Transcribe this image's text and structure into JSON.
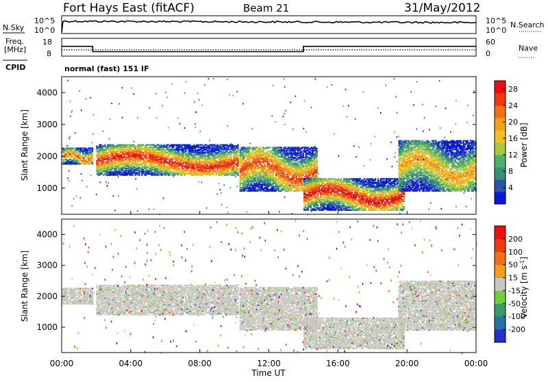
{
  "header": {
    "title": "Fort Hays East (fitACF)",
    "beam": "Beam 21",
    "date": "31/May/2012"
  },
  "noise_panel": {
    "left_label": "N.Sky",
    "right_label": "N.Search",
    "left_ticks": [
      "10^5",
      "10^0"
    ],
    "right_ticks": [
      "10^5",
      "10^0"
    ]
  },
  "freq_panel": {
    "left_label_1": "Freq.",
    "left_label_2": "[MHz]",
    "right_label": "Nave",
    "left_ticks": [
      "18",
      "8"
    ],
    "right_ticks": [
      "60",
      "0"
    ]
  },
  "cpid": {
    "label": "CPID",
    "value": "normal (fast) 151 IF"
  },
  "x_axis": {
    "label": "Time UT",
    "ticks": [
      "00:00",
      "04:00",
      "08:00",
      "12:00",
      "16:00",
      "20:00",
      "00:00"
    ]
  },
  "y_axis": {
    "label": "Slant Range [km]",
    "ticks": [
      "1000",
      "2000",
      "3000",
      "4000"
    ]
  },
  "power_colorbar": {
    "label": "Power [dB]",
    "ticks": [
      "4",
      "8",
      "12",
      "16",
      "20",
      "24",
      "28"
    ],
    "colors": [
      "#0a16d8",
      "#2a55a6",
      "#3a8e78",
      "#52b06a",
      "#a8c840",
      "#f0c020",
      "#f0a020",
      "#f07018",
      "#ee3a14",
      "#e81010"
    ]
  },
  "velocity_colorbar": {
    "label": "Velocity [m s",
    "label_sup": "-1",
    "label_end": "]",
    "ticks": [
      "200",
      "100",
      "50",
      "15",
      "-15",
      "-50",
      "-100",
      "-200"
    ],
    "colors": [
      "#2030c8",
      "#2a70a0",
      "#3a9a6a",
      "#70cc40",
      "#c8c8c0",
      "#f0a020",
      "#f07018",
      "#ee3a14",
      "#e81010"
    ]
  },
  "chart_data": [
    {
      "type": "heatmap",
      "name": "power",
      "xlabel": "Time UT",
      "ylabel": "Slant Range [km]",
      "xlim": [
        0,
        24
      ],
      "ylim": [
        180,
        4500
      ],
      "colorbar_label": "Power [dB]",
      "colorbar_range": [
        0,
        30
      ],
      "features": [
        {
          "t_start": 0.0,
          "t_end": 1.8,
          "range_start": 1750,
          "range_end": 2250,
          "peak_db": 24
        },
        {
          "t_start": 2.0,
          "t_end": 10.2,
          "range_start": 1400,
          "range_end": 2350,
          "peak_db": 28
        },
        {
          "t_start": 10.3,
          "t_end": 14.8,
          "range_start": 900,
          "range_end": 2300,
          "peak_db": 26
        },
        {
          "t_start": 14.0,
          "t_end": 19.8,
          "range_start": 300,
          "range_end": 1300,
          "peak_db": 30
        },
        {
          "t_start": 19.5,
          "t_end": 24.0,
          "range_start": 900,
          "range_end": 2500,
          "peak_db": 20
        }
      ]
    },
    {
      "type": "heatmap",
      "name": "velocity",
      "xlabel": "Time UT",
      "ylabel": "Slant Range [km]",
      "xlim": [
        0,
        24
      ],
      "ylim": [
        180,
        4500
      ],
      "colorbar_range": [
        -200,
        200
      ],
      "dominant_velocity": "-15 to 15"
    },
    {
      "type": "line",
      "name": "frequency",
      "x": [
        0,
        1.8,
        1.8,
        14.0,
        14.0,
        24.0
      ],
      "y": [
        13.5,
        13.5,
        10.5,
        10.5,
        13.5,
        13.5
      ],
      "ylim": [
        8,
        18
      ]
    },
    {
      "type": "line",
      "name": "nave",
      "x": [
        0,
        24
      ],
      "y": [
        21,
        21
      ],
      "ylim": [
        0,
        60
      ]
    }
  ]
}
